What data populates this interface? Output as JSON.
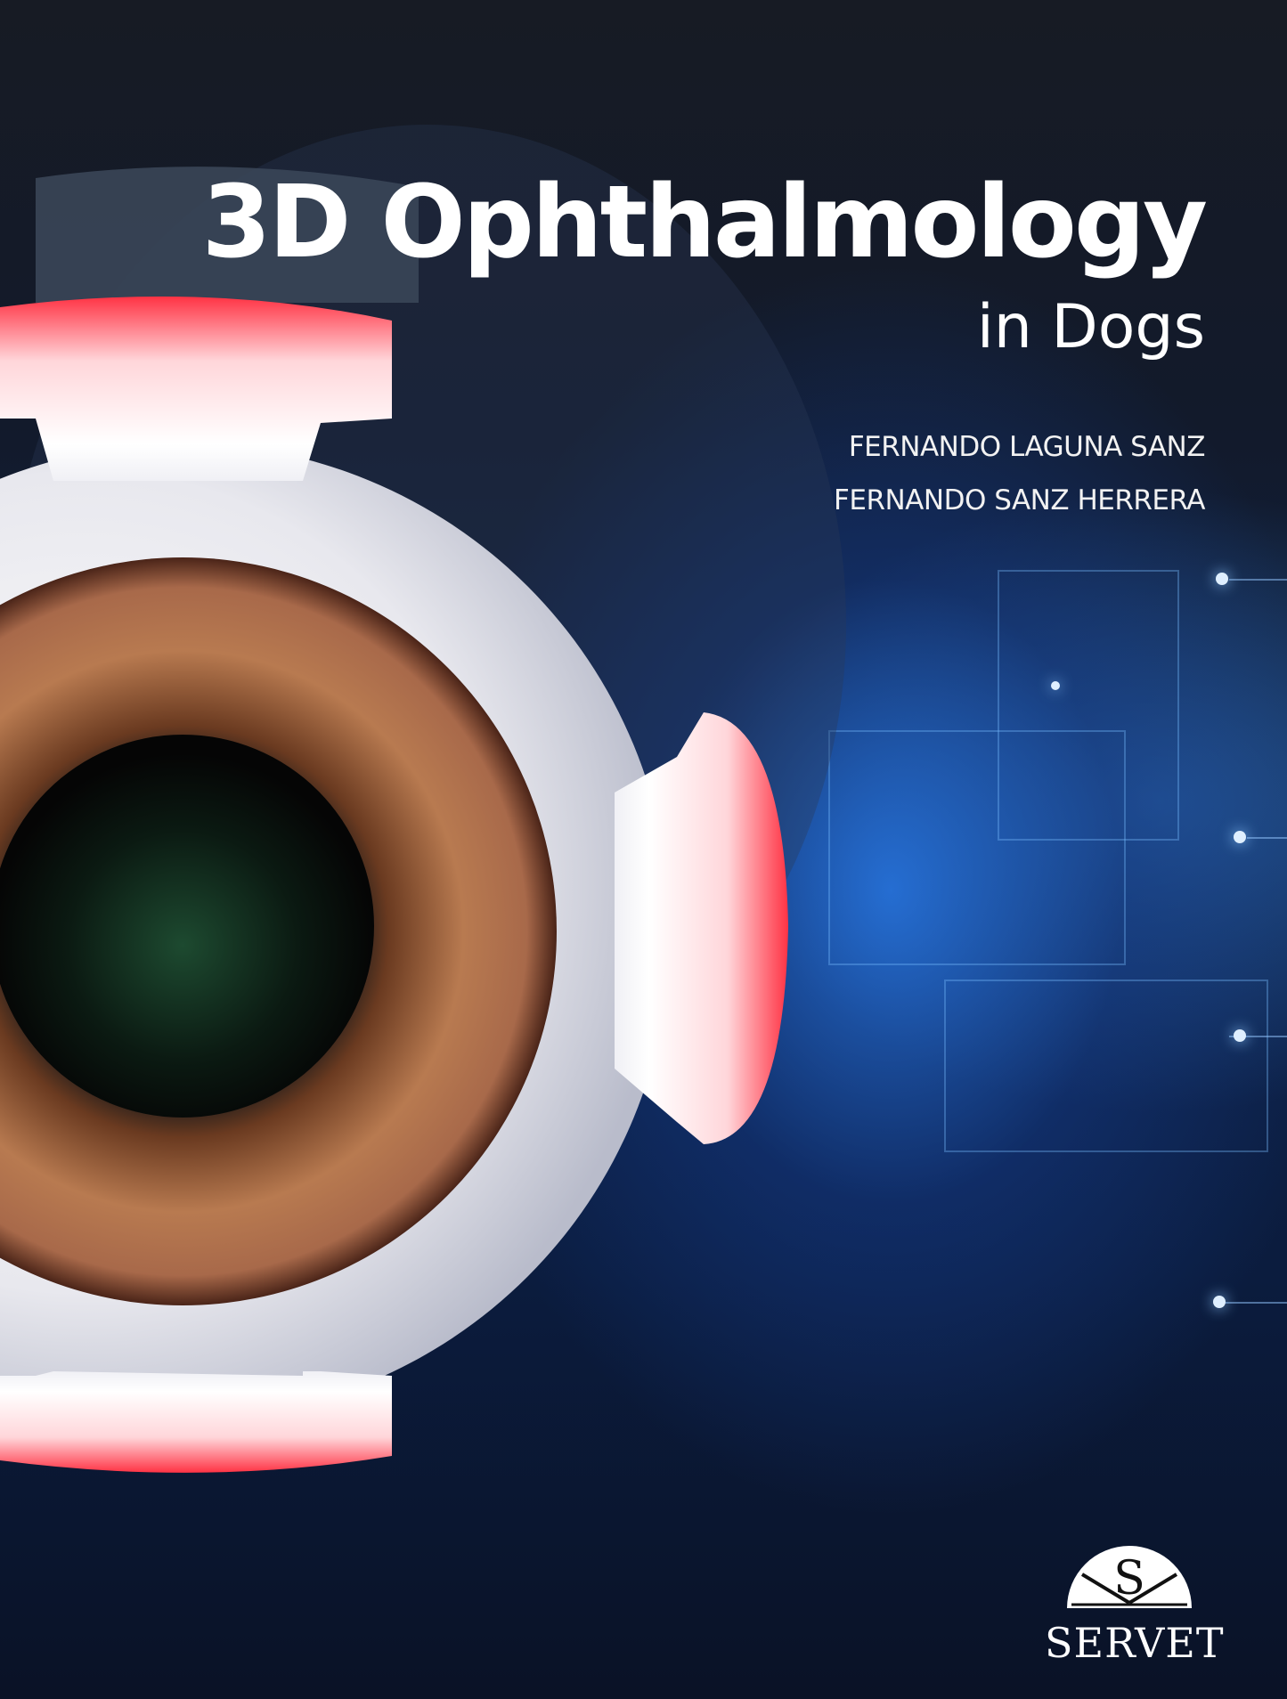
{
  "cover": {
    "title": "3D Ophthalmology",
    "subtitle": "in Dogs",
    "authors": [
      "FERNANDO LAGUNA SANZ",
      "FERNANDO SANZ HERRERA"
    ],
    "publisher": {
      "logo_letter": "S",
      "name": "SERVET"
    },
    "illustration": "3d-eyeball-with-muscles",
    "colors": {
      "background": "#0e2145",
      "accent_blue": "#2878e6",
      "muscle_red": "#ff3a4a",
      "text": "#ffffff"
    }
  }
}
